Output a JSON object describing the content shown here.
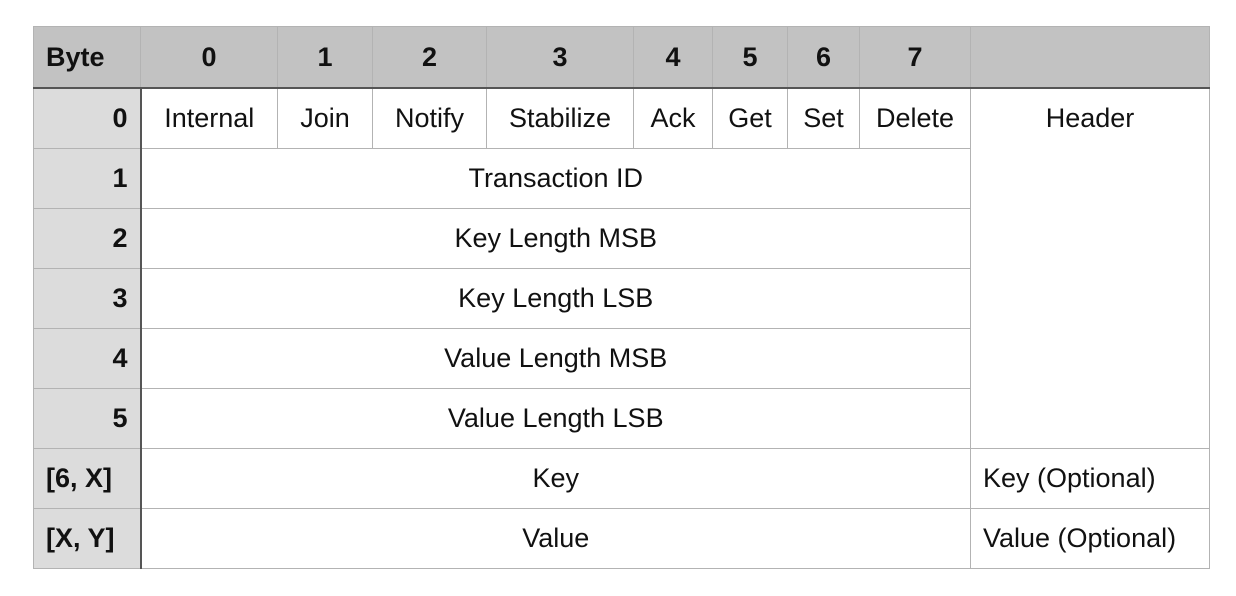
{
  "table": {
    "corner_label": "Byte",
    "bit_headers": [
      "0",
      "1",
      "2",
      "3",
      "4",
      "5",
      "6",
      "7"
    ],
    "section_header": "",
    "rows": {
      "byte0": {
        "label": "0",
        "flags": [
          "Internal",
          "Join",
          "Notify",
          "Stabilize",
          "Ack",
          "Get",
          "Set",
          "Delete"
        ]
      },
      "byte1": {
        "label": "1",
        "field": "Transaction ID"
      },
      "byte2": {
        "label": "2",
        "field": "Key Length MSB"
      },
      "byte3": {
        "label": "3",
        "field": "Key Length LSB"
      },
      "byte4": {
        "label": "4",
        "field": "Value Length MSB"
      },
      "byte5": {
        "label": "5",
        "field": "Value Length LSB"
      },
      "key": {
        "label": "[6, X]",
        "field": "Key"
      },
      "value": {
        "label": "[X, Y]",
        "field": "Value"
      }
    },
    "sections": {
      "header": "Header",
      "key": "Key (Optional)",
      "value": "Value (Optional)"
    }
  }
}
